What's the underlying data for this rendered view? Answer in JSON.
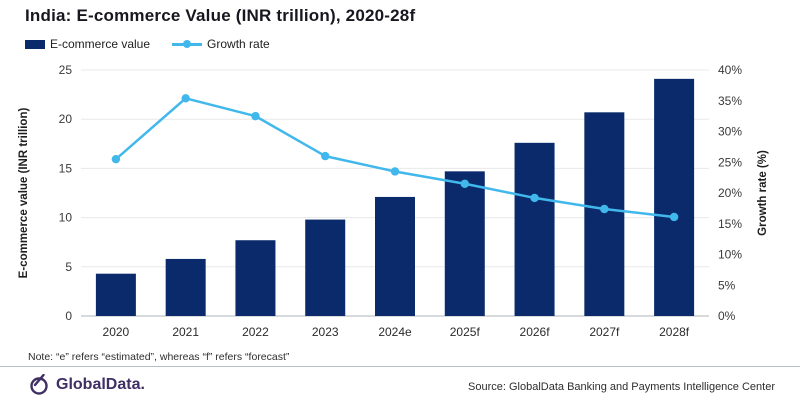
{
  "title": "India: E-commerce Value (INR trillion), 2020-28f",
  "legend": [
    {
      "label": "E-commerce value",
      "swatch": "navy-bar-swatch"
    },
    {
      "label": "Growth rate",
      "swatch": "blue-line-swatch"
    }
  ],
  "note": "Note: “e” refers “estimated”, whereas “f” refers “forecast”",
  "footer": {
    "logo_text": "GlobalData.",
    "source": "Source: GlobalData Banking and Payments Intelligence Center"
  },
  "colors": {
    "bar": "#0a2a6b",
    "line": "#41b8ec",
    "grid": "#e8e8ea",
    "baseline": "#c9cdd2",
    "tick_text": "#3a3a3a",
    "axis_title_text": "#1f1f1f",
    "title_text": "#17171f",
    "logo": "#3f2f63"
  },
  "chart_data": {
    "type": "bar",
    "subtype": "combo bar + line, dual axis",
    "title": "India: E-commerce Value (INR trillion), 2020-28f",
    "categories": [
      "2020",
      "2021",
      "2022",
      "2023",
      "2024e",
      "2025f",
      "2026f",
      "2027f",
      "2028f"
    ],
    "series": [
      {
        "name": "E-commerce value",
        "type": "bar",
        "axis": "left",
        "unit": "INR trillion",
        "values": [
          4.3,
          5.8,
          7.7,
          9.8,
          12.1,
          14.7,
          17.6,
          20.7,
          24.1
        ]
      },
      {
        "name": "Growth rate",
        "type": "line",
        "axis": "right",
        "unit": "%",
        "values": [
          25.5,
          35.4,
          32.5,
          26.0,
          23.5,
          21.5,
          19.2,
          17.4,
          16.1
        ]
      }
    ],
    "left_axis": {
      "label": "E-commerce value (INR trillion)",
      "min": 0,
      "max": 25,
      "tick_step": 5
    },
    "right_axis": {
      "label": "Growth rate (%)",
      "min": 0,
      "max": 40,
      "tick_step": 5,
      "tick_suffix": "%"
    },
    "grid": "horizontal gridlines on",
    "legend_position": "top-left"
  }
}
